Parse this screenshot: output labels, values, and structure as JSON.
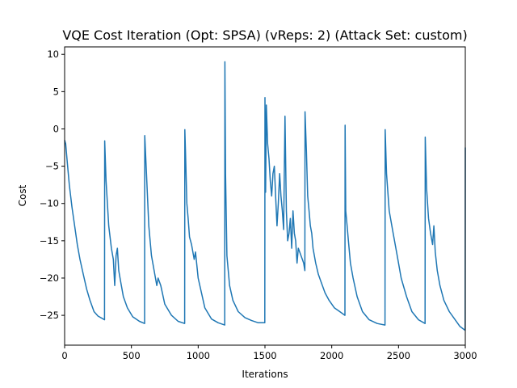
{
  "chart_data": {
    "type": "line",
    "title": "VQE Cost Iteration  (Opt: SPSA) (vReps: 2) (Attack Set: custom)",
    "xlabel": "Iterations",
    "ylabel": "Cost",
    "xlim": [
      0,
      3000
    ],
    "ylim": [
      -29,
      11
    ],
    "xticks": [
      0,
      500,
      1000,
      1500,
      2000,
      2500,
      3000
    ],
    "xtick_labels": [
      "0",
      "500",
      "1000",
      "1500",
      "2000",
      "2500",
      "3000"
    ],
    "yticks": [
      10,
      5,
      0,
      -5,
      -10,
      -15,
      -20,
      -25
    ],
    "ytick_labels": [
      "10",
      "5",
      "0",
      "−5",
      "−10",
      "−15",
      "−20",
      "−25"
    ],
    "grid": false,
    "line_color": "#1f77b4",
    "series": [
      {
        "points": [
          [
            0,
            -1.5
          ],
          [
            8,
            -2.0
          ],
          [
            20,
            -4.5
          ],
          [
            35,
            -7.5
          ],
          [
            55,
            -10.5
          ],
          [
            75,
            -13.0
          ],
          [
            95,
            -15.5
          ],
          [
            115,
            -17.5
          ],
          [
            140,
            -19.5
          ],
          [
            165,
            -21.5
          ],
          [
            190,
            -23.0
          ],
          [
            220,
            -24.5
          ],
          [
            250,
            -25.1
          ],
          [
            280,
            -25.4
          ],
          [
            299,
            -25.6
          ],
          [
            300,
            -1.6
          ],
          [
            310,
            -7.0
          ],
          [
            330,
            -13.0
          ],
          [
            350,
            -16.0
          ],
          [
            365,
            -17.5
          ],
          [
            375,
            -21.0
          ],
          [
            385,
            -17.0
          ],
          [
            395,
            -16.0
          ],
          [
            405,
            -19.0
          ],
          [
            420,
            -20.5
          ],
          [
            440,
            -22.5
          ],
          [
            470,
            -24.0
          ],
          [
            510,
            -25.2
          ],
          [
            560,
            -25.8
          ],
          [
            599,
            -26.1
          ],
          [
            600,
            -0.9
          ],
          [
            610,
            -5.0
          ],
          [
            630,
            -13.0
          ],
          [
            650,
            -17.0
          ],
          [
            670,
            -19.0
          ],
          [
            690,
            -21.0
          ],
          [
            700,
            -20.0
          ],
          [
            720,
            -21.0
          ],
          [
            750,
            -23.5
          ],
          [
            800,
            -25.0
          ],
          [
            850,
            -25.8
          ],
          [
            899,
            -26.1
          ],
          [
            900,
            -0.1
          ],
          [
            905,
            -3.0
          ],
          [
            915,
            -10.0
          ],
          [
            925,
            -12.0
          ],
          [
            935,
            -14.5
          ],
          [
            950,
            -15.5
          ],
          [
            970,
            -17.5
          ],
          [
            980,
            -16.5
          ],
          [
            1000,
            -20.0
          ],
          [
            1050,
            -24.0
          ],
          [
            1100,
            -25.5
          ],
          [
            1150,
            -26.0
          ],
          [
            1199,
            -26.3
          ],
          [
            1200,
            9.0
          ],
          [
            1205,
            -6.0
          ],
          [
            1215,
            -17.0
          ],
          [
            1235,
            -21.0
          ],
          [
            1260,
            -23.0
          ],
          [
            1300,
            -24.5
          ],
          [
            1350,
            -25.3
          ],
          [
            1400,
            -25.7
          ],
          [
            1450,
            -26.0
          ],
          [
            1499,
            -26.0
          ],
          [
            1500,
            4.2
          ],
          [
            1505,
            -8.5
          ],
          [
            1510,
            3.2
          ],
          [
            1520,
            -2.0
          ],
          [
            1530,
            -4.0
          ],
          [
            1540,
            -7.0
          ],
          [
            1550,
            -9.0
          ],
          [
            1560,
            -6.0
          ],
          [
            1570,
            -5.0
          ],
          [
            1580,
            -9.0
          ],
          [
            1590,
            -13.0
          ],
          [
            1600,
            -10.0
          ],
          [
            1610,
            -6.0
          ],
          [
            1620,
            -9.0
          ],
          [
            1630,
            -11.0
          ],
          [
            1640,
            -13.5
          ],
          [
            1650,
            1.7
          ],
          [
            1660,
            -11.0
          ],
          [
            1670,
            -15.0
          ],
          [
            1680,
            -14.0
          ],
          [
            1690,
            -12.0
          ],
          [
            1700,
            -16.0
          ],
          [
            1710,
            -11.0
          ],
          [
            1720,
            -14.0
          ],
          [
            1730,
            -15.0
          ],
          [
            1740,
            -18.0
          ],
          [
            1750,
            -16.0
          ],
          [
            1760,
            -16.5
          ],
          [
            1770,
            -17.0
          ],
          [
            1780,
            -17.5
          ],
          [
            1790,
            -18.0
          ],
          [
            1799,
            -19.0
          ],
          [
            1800,
            2.3
          ],
          [
            1810,
            -3.0
          ],
          [
            1820,
            -9.0
          ],
          [
            1830,
            -11.0
          ],
          [
            1840,
            -13.0
          ],
          [
            1850,
            -14.0
          ],
          [
            1860,
            -16.0
          ],
          [
            1880,
            -18.0
          ],
          [
            1900,
            -19.5
          ],
          [
            1920,
            -20.5
          ],
          [
            1950,
            -22.0
          ],
          [
            1980,
            -23.0
          ],
          [
            2020,
            -24.0
          ],
          [
            2060,
            -24.5
          ],
          [
            2099,
            -25.0
          ],
          [
            2100,
            0.5
          ],
          [
            2105,
            -11.0
          ],
          [
            2115,
            -13.0
          ],
          [
            2125,
            -15.0
          ],
          [
            2140,
            -18.0
          ],
          [
            2160,
            -20.0
          ],
          [
            2190,
            -22.5
          ],
          [
            2230,
            -24.5
          ],
          [
            2280,
            -25.6
          ],
          [
            2340,
            -26.1
          ],
          [
            2399,
            -26.3
          ],
          [
            2400,
            -0.1
          ],
          [
            2410,
            -6.0
          ],
          [
            2430,
            -11.0
          ],
          [
            2460,
            -14.0
          ],
          [
            2490,
            -17.0
          ],
          [
            2520,
            -20.0
          ],
          [
            2560,
            -22.5
          ],
          [
            2600,
            -24.5
          ],
          [
            2650,
            -25.6
          ],
          [
            2699,
            -26.1
          ],
          [
            2700,
            -1.1
          ],
          [
            2710,
            -8.0
          ],
          [
            2725,
            -12.0
          ],
          [
            2740,
            -14.0
          ],
          [
            2755,
            -15.5
          ],
          [
            2765,
            -13.0
          ],
          [
            2775,
            -16.5
          ],
          [
            2790,
            -19.0
          ],
          [
            2810,
            -21.0
          ],
          [
            2840,
            -23.0
          ],
          [
            2880,
            -24.5
          ],
          [
            2920,
            -25.5
          ],
          [
            2960,
            -26.5
          ],
          [
            2999,
            -27.0
          ],
          [
            3000,
            -2.5
          ]
        ]
      }
    ]
  }
}
